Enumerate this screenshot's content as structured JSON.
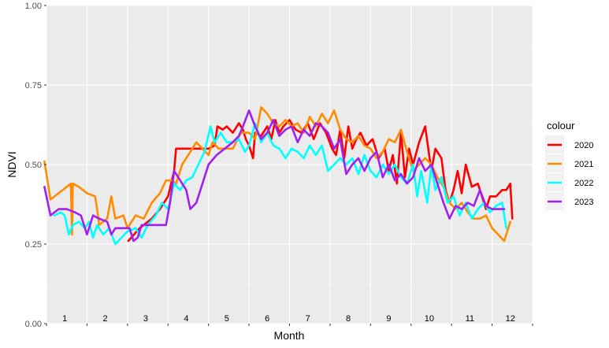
{
  "chart_data": {
    "type": "line",
    "title": "",
    "xlabel": "Month",
    "ylabel": "NDVI",
    "xlim": [
      1,
      13
    ],
    "ylim": [
      0,
      1
    ],
    "y_ticks": [
      "0.00",
      "0.25",
      "0.50",
      "0.75",
      "1.00"
    ],
    "x_tick_labels": [
      "1",
      "2",
      "3",
      "4",
      "5",
      "6",
      "7",
      "8",
      "9",
      "10",
      "11",
      "12"
    ],
    "grid": true,
    "legend": {
      "title": "colour",
      "placement": "right"
    },
    "series": [
      {
        "name": "2020",
        "color": "#ff0000",
        "points": [
          [
            3.02,
            0.26
          ],
          [
            3.3,
            0.3
          ],
          [
            3.6,
            0.33
          ],
          [
            3.8,
            0.36
          ],
          [
            4.0,
            0.4
          ],
          [
            4.15,
            0.48
          ],
          [
            4.2,
            0.55
          ],
          [
            4.5,
            0.55
          ],
          [
            4.8,
            0.55
          ],
          [
            5.0,
            0.55
          ],
          [
            5.15,
            0.56
          ],
          [
            5.22,
            0.62
          ],
          [
            5.35,
            0.61
          ],
          [
            5.45,
            0.62
          ],
          [
            5.6,
            0.6
          ],
          [
            5.75,
            0.63
          ],
          [
            5.85,
            0.61
          ],
          [
            5.92,
            0.58
          ],
          [
            6.0,
            0.56
          ],
          [
            6.1,
            0.52
          ],
          [
            6.15,
            0.6
          ],
          [
            6.3,
            0.59
          ],
          [
            6.45,
            0.62
          ],
          [
            6.55,
            0.58
          ],
          [
            6.65,
            0.64
          ],
          [
            6.75,
            0.6
          ],
          [
            6.85,
            0.62
          ],
          [
            7.0,
            0.64
          ],
          [
            7.15,
            0.61
          ],
          [
            7.3,
            0.6
          ],
          [
            7.45,
            0.63
          ],
          [
            7.6,
            0.58
          ],
          [
            7.75,
            0.63
          ],
          [
            7.9,
            0.6
          ],
          [
            8.05,
            0.55
          ],
          [
            8.15,
            0.53
          ],
          [
            8.25,
            0.61
          ],
          [
            8.35,
            0.52
          ],
          [
            8.45,
            0.62
          ],
          [
            8.55,
            0.55
          ],
          [
            8.65,
            0.58
          ],
          [
            8.75,
            0.6
          ],
          [
            8.9,
            0.56
          ],
          [
            9.05,
            0.58
          ],
          [
            9.2,
            0.52
          ],
          [
            9.35,
            0.55
          ],
          [
            9.45,
            0.48
          ],
          [
            9.55,
            0.53
          ],
          [
            9.65,
            0.44
          ],
          [
            9.75,
            0.6
          ],
          [
            9.85,
            0.46
          ],
          [
            9.95,
            0.55
          ],
          [
            10.05,
            0.5
          ],
          [
            10.2,
            0.57
          ],
          [
            10.35,
            0.62
          ],
          [
            10.5,
            0.48
          ],
          [
            10.6,
            0.55
          ],
          [
            10.75,
            0.52
          ],
          [
            10.85,
            0.42
          ],
          [
            10.95,
            0.38
          ],
          [
            11.05,
            0.42
          ],
          [
            11.15,
            0.48
          ],
          [
            11.25,
            0.41
          ],
          [
            11.35,
            0.5
          ],
          [
            11.5,
            0.43
          ],
          [
            11.65,
            0.44
          ],
          [
            11.75,
            0.4
          ],
          [
            11.85,
            0.36
          ],
          [
            11.95,
            0.4
          ],
          [
            12.1,
            0.4
          ],
          [
            12.25,
            0.42
          ],
          [
            12.35,
            0.42
          ],
          [
            12.45,
            0.44
          ],
          [
            12.5,
            0.33
          ]
        ]
      },
      {
        "name": "2021",
        "color": "#ff8c00",
        "points": [
          [
            0.95,
            0.51
          ],
          [
            1.1,
            0.39
          ],
          [
            1.3,
            0.41
          ],
          [
            1.5,
            0.43
          ],
          [
            1.6,
            0.44
          ],
          [
            1.63,
            0.28
          ],
          [
            1.65,
            0.44
          ],
          [
            1.8,
            0.43
          ],
          [
            2.0,
            0.41
          ],
          [
            2.2,
            0.4
          ],
          [
            2.25,
            0.36
          ],
          [
            2.3,
            0.31
          ],
          [
            2.5,
            0.33
          ],
          [
            2.6,
            0.4
          ],
          [
            2.7,
            0.33
          ],
          [
            2.9,
            0.34
          ],
          [
            3.0,
            0.3
          ],
          [
            3.2,
            0.34
          ],
          [
            3.4,
            0.33
          ],
          [
            3.6,
            0.38
          ],
          [
            3.8,
            0.41
          ],
          [
            3.95,
            0.45
          ],
          [
            4.1,
            0.45
          ],
          [
            4.2,
            0.44
          ],
          [
            4.35,
            0.5
          ],
          [
            4.5,
            0.53
          ],
          [
            4.7,
            0.57
          ],
          [
            4.85,
            0.55
          ],
          [
            5.0,
            0.53
          ],
          [
            5.1,
            0.57
          ],
          [
            5.25,
            0.55
          ],
          [
            5.4,
            0.55
          ],
          [
            5.6,
            0.55
          ],
          [
            5.8,
            0.6
          ],
          [
            6.0,
            0.6
          ],
          [
            6.15,
            0.58
          ],
          [
            6.3,
            0.68
          ],
          [
            6.45,
            0.66
          ],
          [
            6.6,
            0.63
          ],
          [
            6.75,
            0.62
          ],
          [
            6.9,
            0.64
          ],
          [
            7.05,
            0.62
          ],
          [
            7.2,
            0.63
          ],
          [
            7.35,
            0.6
          ],
          [
            7.5,
            0.65
          ],
          [
            7.65,
            0.62
          ],
          [
            7.8,
            0.66
          ],
          [
            7.95,
            0.63
          ],
          [
            8.1,
            0.67
          ],
          [
            8.25,
            0.61
          ],
          [
            8.4,
            0.58
          ],
          [
            8.55,
            0.57
          ],
          [
            8.7,
            0.59
          ],
          [
            8.85,
            0.56
          ],
          [
            9.0,
            0.55
          ],
          [
            9.15,
            0.52
          ],
          [
            9.3,
            0.54
          ],
          [
            9.45,
            0.58
          ],
          [
            9.6,
            0.57
          ],
          [
            9.75,
            0.61
          ],
          [
            9.9,
            0.54
          ],
          [
            10.05,
            0.48
          ],
          [
            10.2,
            0.5
          ],
          [
            10.35,
            0.52
          ],
          [
            10.5,
            0.5
          ],
          [
            10.65,
            0.46
          ],
          [
            10.8,
            0.43
          ],
          [
            10.95,
            0.38
          ],
          [
            11.1,
            0.36
          ],
          [
            11.25,
            0.38
          ],
          [
            11.4,
            0.35
          ],
          [
            11.55,
            0.33
          ],
          [
            11.7,
            0.33
          ],
          [
            11.85,
            0.34
          ],
          [
            12.0,
            0.3
          ],
          [
            12.15,
            0.28
          ],
          [
            12.3,
            0.26
          ],
          [
            12.45,
            0.32
          ]
        ]
      },
      {
        "name": "2022",
        "color": "#00ffff",
        "points": [
          [
            1.2,
            0.34
          ],
          [
            1.35,
            0.35
          ],
          [
            1.45,
            0.34
          ],
          [
            1.55,
            0.28
          ],
          [
            1.65,
            0.31
          ],
          [
            1.8,
            0.32
          ],
          [
            1.95,
            0.3
          ],
          [
            2.05,
            0.32
          ],
          [
            2.15,
            0.27
          ],
          [
            2.25,
            0.31
          ],
          [
            2.4,
            0.28
          ],
          [
            2.55,
            0.3
          ],
          [
            2.7,
            0.25
          ],
          [
            2.85,
            0.27
          ],
          [
            3.0,
            0.29
          ],
          [
            3.2,
            0.3
          ],
          [
            3.35,
            0.27
          ],
          [
            3.5,
            0.31
          ],
          [
            3.7,
            0.34
          ],
          [
            3.85,
            0.38
          ],
          [
            4.0,
            0.36
          ],
          [
            4.15,
            0.44
          ],
          [
            4.3,
            0.42
          ],
          [
            4.45,
            0.45
          ],
          [
            4.6,
            0.46
          ],
          [
            4.75,
            0.5
          ],
          [
            4.9,
            0.54
          ],
          [
            5.05,
            0.62
          ],
          [
            5.15,
            0.57
          ],
          [
            5.3,
            0.6
          ],
          [
            5.45,
            0.57
          ],
          [
            5.6,
            0.57
          ],
          [
            5.75,
            0.58
          ],
          [
            5.9,
            0.54
          ],
          [
            6.0,
            0.56
          ],
          [
            6.15,
            0.63
          ],
          [
            6.3,
            0.57
          ],
          [
            6.45,
            0.6
          ],
          [
            6.6,
            0.56
          ],
          [
            6.75,
            0.55
          ],
          [
            6.9,
            0.52
          ],
          [
            7.05,
            0.55
          ],
          [
            7.2,
            0.54
          ],
          [
            7.35,
            0.52
          ],
          [
            7.5,
            0.56
          ],
          [
            7.65,
            0.53
          ],
          [
            7.8,
            0.56
          ],
          [
            7.95,
            0.48
          ],
          [
            8.1,
            0.5
          ],
          [
            8.25,
            0.52
          ],
          [
            8.4,
            0.5
          ],
          [
            8.55,
            0.52
          ],
          [
            8.7,
            0.47
          ],
          [
            8.85,
            0.53
          ],
          [
            9.0,
            0.48
          ],
          [
            9.15,
            0.46
          ],
          [
            9.3,
            0.5
          ],
          [
            9.45,
            0.47
          ],
          [
            9.6,
            0.5
          ],
          [
            9.75,
            0.46
          ],
          [
            9.9,
            0.44
          ],
          [
            10.05,
            0.5
          ],
          [
            10.15,
            0.4
          ],
          [
            10.25,
            0.48
          ],
          [
            10.4,
            0.38
          ],
          [
            10.5,
            0.5
          ],
          [
            10.6,
            0.42
          ],
          [
            10.75,
            0.46
          ],
          [
            10.9,
            0.38
          ],
          [
            11.05,
            0.4
          ],
          [
            11.2,
            0.34
          ],
          [
            11.35,
            0.38
          ],
          [
            11.5,
            0.33
          ],
          [
            11.65,
            0.36
          ],
          [
            11.8,
            0.38
          ],
          [
            11.95,
            0.35
          ],
          [
            12.1,
            0.37
          ],
          [
            12.25,
            0.38
          ],
          [
            12.35,
            0.3
          ]
        ]
      },
      {
        "name": "2023",
        "color": "#a020f0",
        "points": [
          [
            0.95,
            0.43
          ],
          [
            1.1,
            0.34
          ],
          [
            1.3,
            0.36
          ],
          [
            1.5,
            0.36
          ],
          [
            1.7,
            0.35
          ],
          [
            1.85,
            0.34
          ],
          [
            2.0,
            0.28
          ],
          [
            2.15,
            0.34
          ],
          [
            2.3,
            0.33
          ],
          [
            2.5,
            0.32
          ],
          [
            2.6,
            0.28
          ],
          [
            2.7,
            0.3
          ],
          [
            2.9,
            0.3
          ],
          [
            3.05,
            0.3
          ],
          [
            3.15,
            0.26
          ],
          [
            3.25,
            0.27
          ],
          [
            3.35,
            0.31
          ],
          [
            3.55,
            0.31
          ],
          [
            3.75,
            0.31
          ],
          [
            3.95,
            0.31
          ],
          [
            4.05,
            0.38
          ],
          [
            4.15,
            0.48
          ],
          [
            4.3,
            0.45
          ],
          [
            4.45,
            0.42
          ],
          [
            4.55,
            0.36
          ],
          [
            4.7,
            0.38
          ],
          [
            4.85,
            0.44
          ],
          [
            5.0,
            0.5
          ],
          [
            5.2,
            0.53
          ],
          [
            5.4,
            0.55
          ],
          [
            5.6,
            0.57
          ],
          [
            5.75,
            0.59
          ],
          [
            5.85,
            0.62
          ],
          [
            6.0,
            0.67
          ],
          [
            6.15,
            0.62
          ],
          [
            6.3,
            0.58
          ],
          [
            6.45,
            0.6
          ],
          [
            6.6,
            0.64
          ],
          [
            6.75,
            0.59
          ],
          [
            6.9,
            0.61
          ],
          [
            7.05,
            0.62
          ],
          [
            7.2,
            0.57
          ],
          [
            7.35,
            0.61
          ],
          [
            7.5,
            0.59
          ],
          [
            7.65,
            0.63
          ],
          [
            7.8,
            0.62
          ],
          [
            7.95,
            0.6
          ],
          [
            8.1,
            0.55
          ],
          [
            8.25,
            0.58
          ],
          [
            8.4,
            0.47
          ],
          [
            8.55,
            0.5
          ],
          [
            8.7,
            0.52
          ],
          [
            8.85,
            0.48
          ],
          [
            9.0,
            0.52
          ],
          [
            9.15,
            0.54
          ],
          [
            9.3,
            0.46
          ],
          [
            9.45,
            0.5
          ],
          [
            9.6,
            0.45
          ],
          [
            9.75,
            0.47
          ],
          [
            9.9,
            0.44
          ],
          [
            10.05,
            0.46
          ],
          [
            10.2,
            0.52
          ],
          [
            10.35,
            0.48
          ],
          [
            10.5,
            0.5
          ],
          [
            10.65,
            0.44
          ],
          [
            10.8,
            0.38
          ],
          [
            10.95,
            0.33
          ],
          [
            11.1,
            0.37
          ],
          [
            11.25,
            0.36
          ],
          [
            11.4,
            0.38
          ],
          [
            11.55,
            0.37
          ],
          [
            11.7,
            0.42
          ],
          [
            11.85,
            0.37
          ],
          [
            12.0,
            0.36
          ],
          [
            12.15,
            0.36
          ],
          [
            12.3,
            0.36
          ]
        ]
      }
    ]
  }
}
